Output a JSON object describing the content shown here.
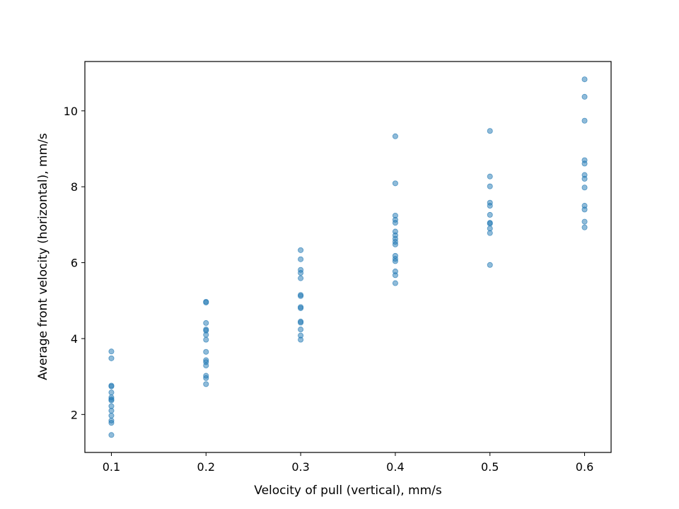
{
  "chart_data": {
    "type": "scatter",
    "title": "",
    "xlabel": "Velocity of pull (vertical), mm/s",
    "ylabel": "Average front velocity (horizontal), mm/s",
    "xlim": [
      0.072,
      0.628
    ],
    "ylim": [
      1.0,
      11.3
    ],
    "xticks": [
      0.1,
      0.2,
      0.3,
      0.4,
      0.5,
      0.6
    ],
    "xtick_labels": [
      "0.1",
      "0.2",
      "0.3",
      "0.4",
      "0.5",
      "0.6"
    ],
    "yticks": [
      2,
      4,
      6,
      8,
      10
    ],
    "ytick_labels": [
      "2",
      "4",
      "6",
      "8",
      "10"
    ],
    "grid": false,
    "legend": "none",
    "marker_color": "#1f77b4",
    "marker_alpha": 0.5,
    "series": [
      {
        "points": [
          [
            0.1,
            3.66
          ],
          [
            0.1,
            3.48
          ],
          [
            0.1,
            2.76
          ],
          [
            0.1,
            2.74
          ],
          [
            0.1,
            2.58
          ],
          [
            0.1,
            2.45
          ],
          [
            0.1,
            2.4
          ],
          [
            0.1,
            2.37
          ],
          [
            0.1,
            2.22
          ],
          [
            0.1,
            2.1
          ],
          [
            0.1,
            1.97
          ],
          [
            0.1,
            1.84
          ],
          [
            0.1,
            1.78
          ],
          [
            0.1,
            1.46
          ],
          [
            0.2,
            4.97
          ],
          [
            0.2,
            4.95
          ],
          [
            0.2,
            4.41
          ],
          [
            0.2,
            4.24
          ],
          [
            0.2,
            4.21
          ],
          [
            0.2,
            4.1
          ],
          [
            0.2,
            3.97
          ],
          [
            0.2,
            3.65
          ],
          [
            0.2,
            3.43
          ],
          [
            0.2,
            3.38
          ],
          [
            0.2,
            3.29
          ],
          [
            0.2,
            3.02
          ],
          [
            0.2,
            2.96
          ],
          [
            0.2,
            2.8
          ],
          [
            0.3,
            6.33
          ],
          [
            0.3,
            6.09
          ],
          [
            0.3,
            5.81
          ],
          [
            0.3,
            5.73
          ],
          [
            0.3,
            5.59
          ],
          [
            0.3,
            5.15
          ],
          [
            0.3,
            5.12
          ],
          [
            0.3,
            4.83
          ],
          [
            0.3,
            4.8
          ],
          [
            0.3,
            4.45
          ],
          [
            0.3,
            4.42
          ],
          [
            0.3,
            4.24
          ],
          [
            0.3,
            4.08
          ],
          [
            0.3,
            3.97
          ],
          [
            0.4,
            9.33
          ],
          [
            0.4,
            8.09
          ],
          [
            0.4,
            7.24
          ],
          [
            0.4,
            7.13
          ],
          [
            0.4,
            7.05
          ],
          [
            0.4,
            6.82
          ],
          [
            0.4,
            6.72
          ],
          [
            0.4,
            6.63
          ],
          [
            0.4,
            6.55
          ],
          [
            0.4,
            6.48
          ],
          [
            0.4,
            6.18
          ],
          [
            0.4,
            6.1
          ],
          [
            0.4,
            6.04
          ],
          [
            0.4,
            5.77
          ],
          [
            0.4,
            5.67
          ],
          [
            0.4,
            5.46
          ],
          [
            0.5,
            9.47
          ],
          [
            0.5,
            8.27
          ],
          [
            0.5,
            8.01
          ],
          [
            0.5,
            7.58
          ],
          [
            0.5,
            7.5
          ],
          [
            0.5,
            7.26
          ],
          [
            0.5,
            7.05
          ],
          [
            0.5,
            7.03
          ],
          [
            0.5,
            6.9
          ],
          [
            0.5,
            6.78
          ],
          [
            0.5,
            5.94
          ],
          [
            0.6,
            10.83
          ],
          [
            0.6,
            10.37
          ],
          [
            0.6,
            9.74
          ],
          [
            0.6,
            8.7
          ],
          [
            0.6,
            8.61
          ],
          [
            0.6,
            8.31
          ],
          [
            0.6,
            8.21
          ],
          [
            0.6,
            7.98
          ],
          [
            0.6,
            7.5
          ],
          [
            0.6,
            7.4
          ],
          [
            0.6,
            7.08
          ],
          [
            0.6,
            6.93
          ]
        ]
      }
    ]
  }
}
